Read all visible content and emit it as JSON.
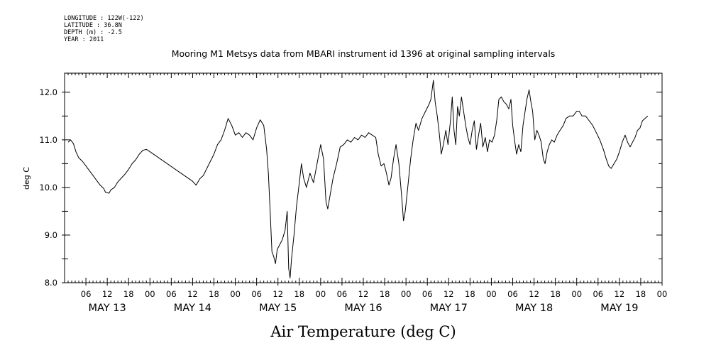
{
  "header": {
    "meta_lines": [
      "LONGITUDE : 122W(-122)",
      "LATITUDE : 36.8N",
      "DEPTH (m) : -2.5",
      "YEAR : 2011"
    ]
  },
  "caption": "Air Temperature (deg C)",
  "chart_data": {
    "type": "line",
    "title": "Mooring M1 Metsys data from MBARI instrument id 1396 at original sampling intervals",
    "xlabel": "",
    "ylabel": "deg C",
    "ylim": [
      8.0,
      12.4
    ],
    "yticks": [
      "8.0",
      "9.0",
      "10.0",
      "11.0",
      "12.0"
    ],
    "xlim_hours": [
      0,
      168
    ],
    "hour_ticks": [
      "06",
      "12",
      "18",
      "00",
      "06",
      "12",
      "18",
      "00",
      "06",
      "12",
      "18",
      "00",
      "06",
      "12",
      "18",
      "00",
      "06",
      "12",
      "18",
      "00",
      "06",
      "12",
      "18",
      "00",
      "06",
      "12",
      "18",
      "00"
    ],
    "days": [
      "MAY 13",
      "MAY 14",
      "MAY 15",
      "MAY 16",
      "MAY 17",
      "MAY 18",
      "MAY 19"
    ],
    "series": [
      {
        "values_approx": [
          [
            1.0,
            10.95
          ],
          [
            1.7,
            11.0
          ],
          [
            2.5,
            10.92
          ],
          [
            3.2,
            10.75
          ],
          [
            4.0,
            10.62
          ],
          [
            5.0,
            10.55
          ],
          [
            6.0,
            10.45
          ],
          [
            7.0,
            10.35
          ],
          [
            8.0,
            10.25
          ],
          [
            9.0,
            10.15
          ],
          [
            10.0,
            10.05
          ],
          [
            11.0,
            9.98
          ],
          [
            11.5,
            9.9
          ],
          [
            12.5,
            9.88
          ],
          [
            13.0,
            9.95
          ],
          [
            14.0,
            10.0
          ],
          [
            15.0,
            10.12
          ],
          [
            16.0,
            10.2
          ],
          [
            17.0,
            10.28
          ],
          [
            18.0,
            10.38
          ],
          [
            19.0,
            10.5
          ],
          [
            20.0,
            10.58
          ],
          [
            21.0,
            10.7
          ],
          [
            22.0,
            10.78
          ],
          [
            23.0,
            10.8
          ],
          [
            24.0,
            10.75
          ],
          [
            36.0,
            10.13
          ],
          [
            37.0,
            10.05
          ],
          [
            38.0,
            10.18
          ],
          [
            39.0,
            10.25
          ],
          [
            40.0,
            10.4
          ],
          [
            41.0,
            10.55
          ],
          [
            42.0,
            10.7
          ],
          [
            43.0,
            10.9
          ],
          [
            44.0,
            11.0
          ],
          [
            45.0,
            11.2
          ],
          [
            46.0,
            11.45
          ],
          [
            47.0,
            11.3
          ],
          [
            48.0,
            11.1
          ],
          [
            49.0,
            11.15
          ],
          [
            50.0,
            11.05
          ],
          [
            51.0,
            11.15
          ],
          [
            52.0,
            11.1
          ],
          [
            53.0,
            11.0
          ],
          [
            54.0,
            11.25
          ],
          [
            55.0,
            11.42
          ],
          [
            56.0,
            11.3
          ],
          [
            56.8,
            10.8
          ],
          [
            57.3,
            10.3
          ],
          [
            57.8,
            9.5
          ],
          [
            58.3,
            8.65
          ],
          [
            58.8,
            8.55
          ],
          [
            59.3,
            8.4
          ],
          [
            59.8,
            8.7
          ],
          [
            60.5,
            8.8
          ],
          [
            61.2,
            8.9
          ],
          [
            62.0,
            9.1
          ],
          [
            62.6,
            9.5
          ],
          [
            63.0,
            8.3
          ],
          [
            63.4,
            8.1
          ],
          [
            63.8,
            8.5
          ],
          [
            64.5,
            9.0
          ],
          [
            65.2,
            9.6
          ],
          [
            66.0,
            10.1
          ],
          [
            66.6,
            10.5
          ],
          [
            67.2,
            10.2
          ],
          [
            68.0,
            10.0
          ],
          [
            69.0,
            10.3
          ],
          [
            70.0,
            10.1
          ],
          [
            71.0,
            10.5
          ],
          [
            72.0,
            10.9
          ],
          [
            72.8,
            10.6
          ],
          [
            73.5,
            9.7
          ],
          [
            74.0,
            9.55
          ],
          [
            74.8,
            9.9
          ],
          [
            75.5,
            10.2
          ],
          [
            76.5,
            10.5
          ],
          [
            77.5,
            10.85
          ],
          [
            78.5,
            10.9
          ],
          [
            79.5,
            11.0
          ],
          [
            80.5,
            10.95
          ],
          [
            81.5,
            11.05
          ],
          [
            82.5,
            11.0
          ],
          [
            83.5,
            11.1
          ],
          [
            84.5,
            11.05
          ],
          [
            85.5,
            11.15
          ],
          [
            86.5,
            11.1
          ],
          [
            87.5,
            11.05
          ],
          [
            88.2,
            10.7
          ],
          [
            89.0,
            10.45
          ],
          [
            89.8,
            10.5
          ],
          [
            90.5,
            10.3
          ],
          [
            91.2,
            10.05
          ],
          [
            91.8,
            10.2
          ],
          [
            92.5,
            10.6
          ],
          [
            93.2,
            10.9
          ],
          [
            94.0,
            10.5
          ],
          [
            94.8,
            9.8
          ],
          [
            95.3,
            9.3
          ],
          [
            95.8,
            9.5
          ],
          [
            96.5,
            10.0
          ],
          [
            97.3,
            10.6
          ],
          [
            98.0,
            11.0
          ],
          [
            98.8,
            11.35
          ],
          [
            99.5,
            11.2
          ],
          [
            100.5,
            11.45
          ],
          [
            101.5,
            11.6
          ],
          [
            102.5,
            11.75
          ],
          [
            103.0,
            11.85
          ],
          [
            103.7,
            12.25
          ],
          [
            104.2,
            11.8
          ],
          [
            104.8,
            11.5
          ],
          [
            105.4,
            11.1
          ],
          [
            105.9,
            10.7
          ],
          [
            106.5,
            10.9
          ],
          [
            107.2,
            11.2
          ],
          [
            107.8,
            10.9
          ],
          [
            108.5,
            11.4
          ],
          [
            109.0,
            11.9
          ],
          [
            109.5,
            11.2
          ],
          [
            110.0,
            10.9
          ],
          [
            110.5,
            11.7
          ],
          [
            111.0,
            11.5
          ],
          [
            111.6,
            11.9
          ],
          [
            112.2,
            11.6
          ],
          [
            112.8,
            11.3
          ],
          [
            113.4,
            11.05
          ],
          [
            114.0,
            10.9
          ],
          [
            114.6,
            11.2
          ],
          [
            115.2,
            11.4
          ],
          [
            115.8,
            10.8
          ],
          [
            116.4,
            11.1
          ],
          [
            117.0,
            11.35
          ],
          [
            117.6,
            10.85
          ],
          [
            118.3,
            11.05
          ],
          [
            118.9,
            10.75
          ],
          [
            119.5,
            11.0
          ],
          [
            120.2,
            10.95
          ],
          [
            120.9,
            11.1
          ],
          [
            121.5,
            11.4
          ],
          [
            122.1,
            11.85
          ],
          [
            122.8,
            11.9
          ],
          [
            123.5,
            11.8
          ],
          [
            124.2,
            11.75
          ],
          [
            124.9,
            11.65
          ],
          [
            125.5,
            11.85
          ],
          [
            126.0,
            11.3
          ],
          [
            126.6,
            10.95
          ],
          [
            127.1,
            10.7
          ],
          [
            127.7,
            10.9
          ],
          [
            128.3,
            10.75
          ],
          [
            128.9,
            11.3
          ],
          [
            129.5,
            11.6
          ],
          [
            130.0,
            11.85
          ],
          [
            130.6,
            12.05
          ],
          [
            131.1,
            11.8
          ],
          [
            131.6,
            11.6
          ],
          [
            132.2,
            11.0
          ],
          [
            132.8,
            11.2
          ],
          [
            133.4,
            11.1
          ],
          [
            134.0,
            10.95
          ],
          [
            134.6,
            10.6
          ],
          [
            135.1,
            10.5
          ],
          [
            135.7,
            10.75
          ],
          [
            136.3,
            10.9
          ],
          [
            137.0,
            11.0
          ],
          [
            137.7,
            10.95
          ],
          [
            138.5,
            11.1
          ],
          [
            139.3,
            11.2
          ],
          [
            140.2,
            11.3
          ],
          [
            141.0,
            11.45
          ],
          [
            142.0,
            11.5
          ],
          [
            143.0,
            11.5
          ],
          [
            144.0,
            11.6
          ],
          [
            144.7,
            11.6
          ],
          [
            145.5,
            11.5
          ],
          [
            146.5,
            11.5
          ],
          [
            147.5,
            11.4
          ],
          [
            148.5,
            11.3
          ],
          [
            149.5,
            11.15
          ],
          [
            150.5,
            11.0
          ],
          [
            151.5,
            10.8
          ],
          [
            152.3,
            10.6
          ],
          [
            153.0,
            10.45
          ],
          [
            153.7,
            10.4
          ],
          [
            154.5,
            10.5
          ],
          [
            155.3,
            10.6
          ],
          [
            156.0,
            10.75
          ],
          [
            156.8,
            10.95
          ],
          [
            157.6,
            11.1
          ],
          [
            158.3,
            10.95
          ],
          [
            159.0,
            10.85
          ],
          [
            159.7,
            10.95
          ],
          [
            160.4,
            11.05
          ],
          [
            161.1,
            11.2
          ],
          [
            161.8,
            11.25
          ],
          [
            162.5,
            11.4
          ],
          [
            163.2,
            11.45
          ],
          [
            164.0,
            11.5
          ]
        ]
      }
    ],
    "grid": false,
    "legend": "none"
  }
}
